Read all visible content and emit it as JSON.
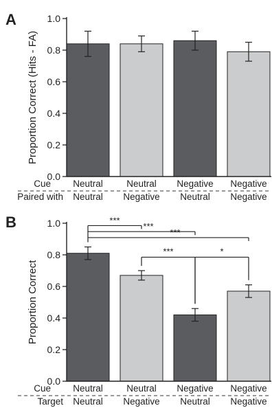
{
  "chart_data": [
    {
      "panel": "A",
      "type": "bar",
      "ylabel": "Proportion Correct (Hits - FA)",
      "ylim": [
        0,
        1.0
      ],
      "yticks": [
        "0.0",
        "0.2",
        "0.4",
        "0.6",
        "0.8",
        "1.0"
      ],
      "row_labels": [
        "Cue",
        "Paired with"
      ],
      "categories": [
        {
          "row1": "Neutral",
          "row2": "Neutral"
        },
        {
          "row1": "Neutral",
          "row2": "Negative"
        },
        {
          "row1": "Negative",
          "row2": "Neutral"
        },
        {
          "row1": "Negative",
          "row2": "Negative"
        }
      ],
      "values": [
        0.84,
        0.84,
        0.86,
        0.79
      ],
      "errors": [
        0.08,
        0.05,
        0.06,
        0.06
      ],
      "bar_colors": [
        "#5b5c5f",
        "#cbcccd",
        "#5b5c5f",
        "#cbcccd"
      ],
      "significance": []
    },
    {
      "panel": "B",
      "type": "bar",
      "ylabel": "Proportion Correct",
      "ylim": [
        0,
        1.0
      ],
      "yticks": [
        "0.0",
        "0.2",
        "0.4",
        "0.6",
        "0.8",
        "1.0"
      ],
      "row_labels": [
        "Cue",
        "Target"
      ],
      "categories": [
        {
          "row1": "Neutral",
          "row2": "Neutral"
        },
        {
          "row1": "Neutral",
          "row2": "Negative"
        },
        {
          "row1": "Negative",
          "row2": "Neutral"
        },
        {
          "row1": "Negative",
          "row2": "Negative"
        }
      ],
      "values": [
        0.81,
        0.67,
        0.42,
        0.57
      ],
      "errors": [
        0.04,
        0.03,
        0.04,
        0.04
      ],
      "bar_colors": [
        "#5b5c5f",
        "#cbcccd",
        "#5b5c5f",
        "#cbcccd"
      ],
      "significance": [
        {
          "from": 0,
          "to": 1,
          "label": "***"
        },
        {
          "from": 0,
          "to": 2,
          "label": "***"
        },
        {
          "from": 0,
          "to": 3,
          "label": "***"
        },
        {
          "from": 1,
          "to": 2,
          "label": "***"
        },
        {
          "from": 2,
          "to": 3,
          "label": "*"
        }
      ]
    }
  ]
}
